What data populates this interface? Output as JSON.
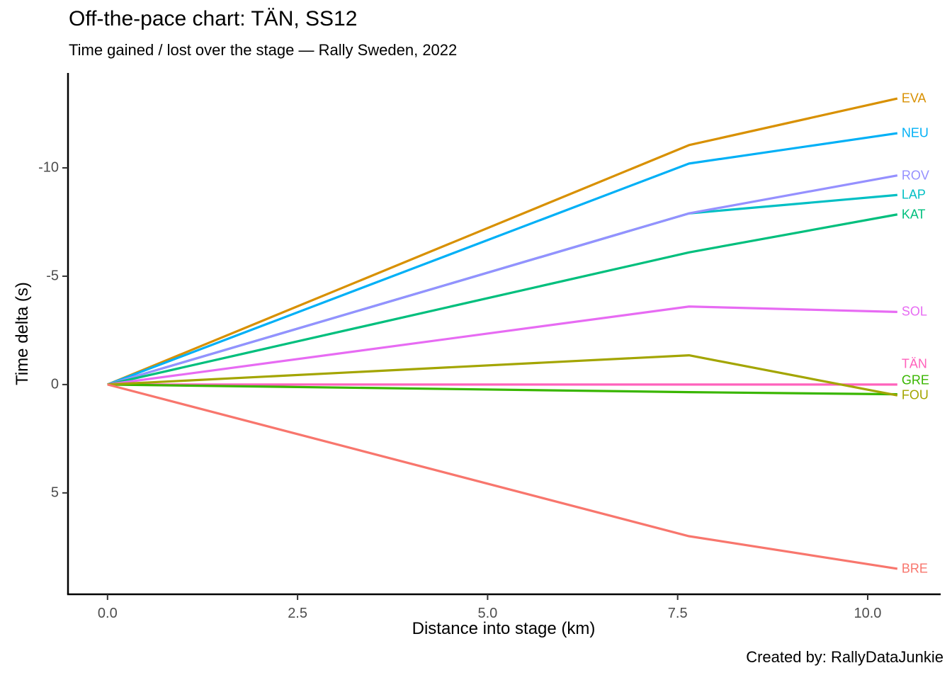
{
  "chart_data": {
    "type": "line",
    "title": "Off-the-pace chart: TÄN, SS12",
    "subtitle": "Time gained / lost over the stage — Rally Sweden, 2022",
    "xlabel": "Distance into stage (km)",
    "ylabel": "Time delta (s)",
    "caption": "Created by: RallyDataJunkie",
    "x": [
      0,
      7.65,
      10.39
    ],
    "series": [
      {
        "name": "EVA",
        "color": "#D89000",
        "values": [
          0,
          -11.05,
          -13.2
        ]
      },
      {
        "name": "NEU",
        "color": "#00B0F6",
        "values": [
          0,
          -10.2,
          -11.6
        ]
      },
      {
        "name": "LAP",
        "color": "#00BFC4",
        "values": [
          0,
          -7.9,
          -8.75
        ]
      },
      {
        "name": "ROV",
        "color": "#9590FF",
        "values": [
          0,
          -7.9,
          -9.65
        ]
      },
      {
        "name": "KAT",
        "color": "#00BF7D",
        "values": [
          0,
          -6.1,
          -7.85
        ]
      },
      {
        "name": "SOL",
        "color": "#E76BF3",
        "values": [
          0,
          -3.6,
          -3.35
        ]
      },
      {
        "name": "TÄN",
        "color": "#FF62BC",
        "values": [
          0,
          0,
          0
        ]
      },
      {
        "name": "GRE",
        "color": "#39B600",
        "values": [
          0,
          0.35,
          0.45
        ]
      },
      {
        "name": "FOU",
        "color": "#A3A500",
        "values": [
          0,
          -1.35,
          0.5
        ]
      },
      {
        "name": "BRE",
        "color": "#F8766D",
        "values": [
          0,
          7.0,
          8.5
        ]
      }
    ],
    "x_ticks": {
      "values": [
        0,
        2.5,
        5.0,
        7.5,
        10.0
      ],
      "labels": [
        "0.0",
        "2.5",
        "5.0",
        "7.5",
        "10.0"
      ]
    },
    "y_ticks": {
      "values": [
        -10,
        -5,
        0,
        5
      ],
      "labels": [
        "-10",
        "-5",
        "0",
        "5"
      ]
    },
    "xlim": [
      -0.52,
      10.96
    ],
    "ylim": [
      -14.38,
      9.68
    ],
    "y_axis_reversed": true,
    "grid": false,
    "axis_color": "#000000",
    "tick_label_color": "#4D4D4D",
    "background": "#FFFFFF"
  }
}
